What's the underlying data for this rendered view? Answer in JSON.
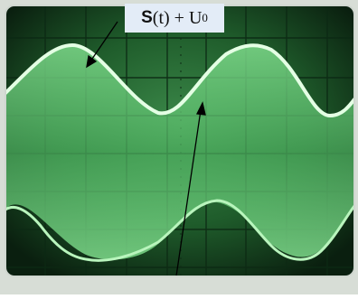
{
  "annotation": {
    "symbol": "S",
    "arg": "(t) + U",
    "subscript": "0"
  },
  "colors": {
    "screen_dark": "#0b1d10",
    "screen_mid": "#1e5a2a",
    "grid": "#0f2e17",
    "band": "#5fbf70",
    "trace": "#d8ffd8",
    "frame": "#cfd6cf"
  }
}
